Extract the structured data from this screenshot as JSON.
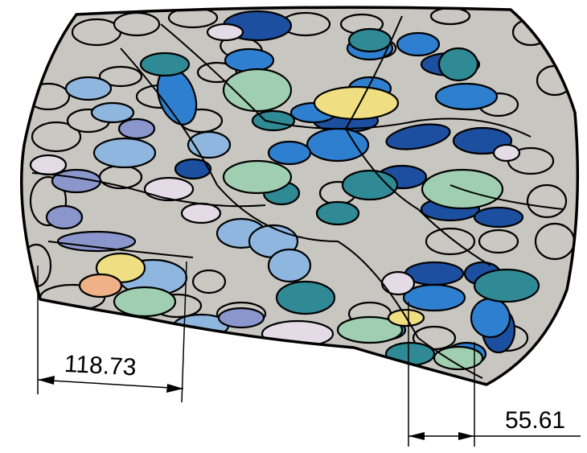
{
  "dimensions": [
    {
      "id": "left",
      "label": "118.73"
    },
    {
      "id": "right",
      "label": "55.61"
    }
  ],
  "colors": {
    "matrix": "#c8c6c0",
    "grain_grey": "#c9c8c2",
    "grain_blue_dark": "#1d4fa0",
    "grain_blue": "#2f7fd0",
    "grain_light_blue": "#8fb6df",
    "grain_teal": "#2f8a95",
    "grain_green": "#9fcfb0",
    "grain_yellow": "#efdf82",
    "grain_lavender": "#e4dbe6",
    "grain_periwinkle": "#8b96cc",
    "grain_salmon": "#f0b088",
    "outline": "#000000"
  }
}
